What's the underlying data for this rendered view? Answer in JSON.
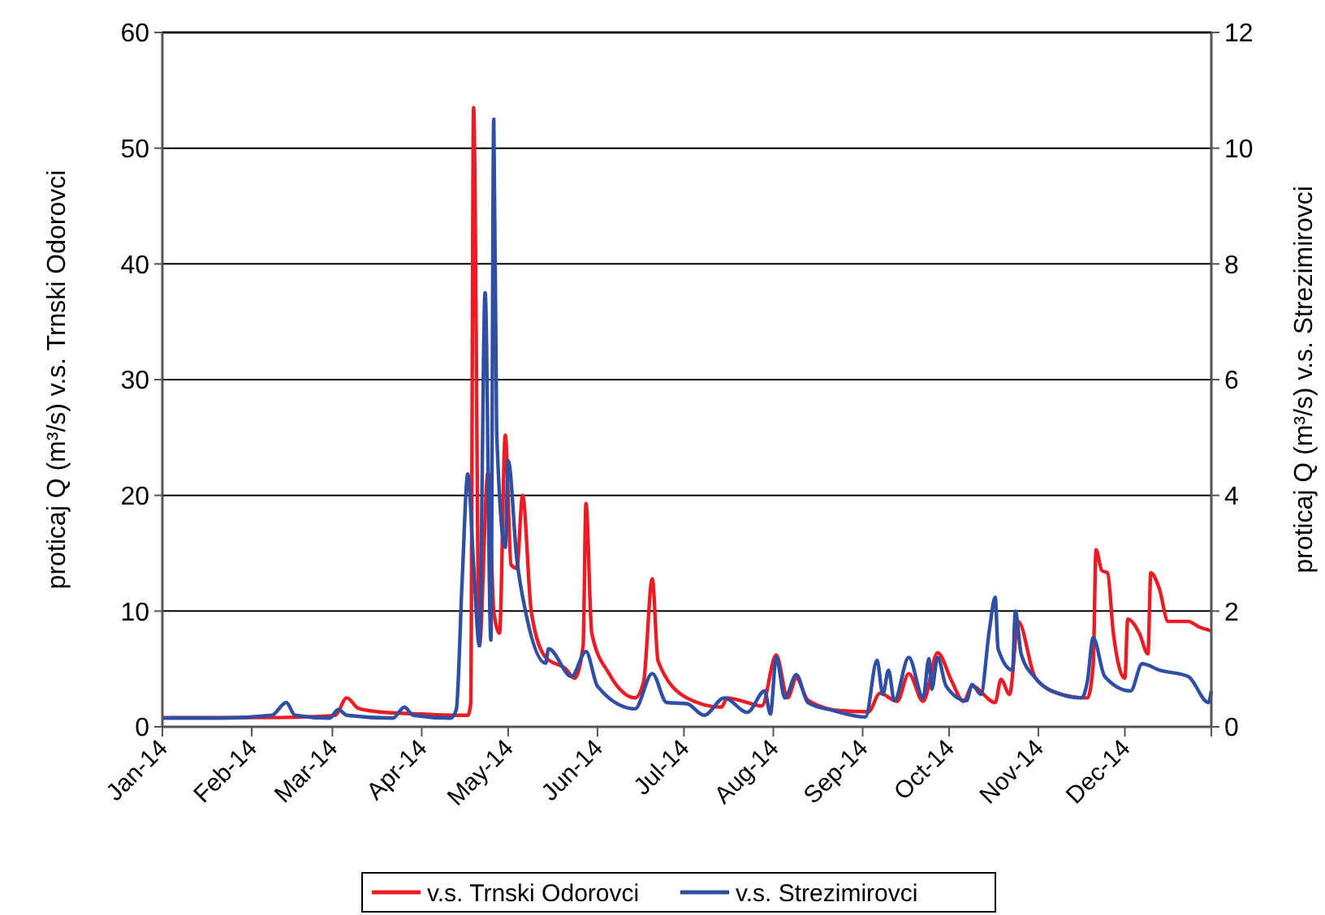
{
  "chart_data": {
    "type": "line",
    "ylabel": "proticaj Q (m³/s) v.s. Trnski Odorovci",
    "y2label": "proticaj Q (m³/s) v.s. Strezimirovci",
    "xlim": [
      "2014-01-01",
      "2014-12-31"
    ],
    "xticks": [
      {
        "value": "2014-01-01",
        "label": "Jan-14"
      },
      {
        "value": "2014-02-01",
        "label": "Feb-14"
      },
      {
        "value": "2014-03-01",
        "label": "Mar-14"
      },
      {
        "value": "2014-04-01",
        "label": "Apr-14"
      },
      {
        "value": "2014-05-01",
        "label": "May-14"
      },
      {
        "value": "2014-06-01",
        "label": "Jun-14"
      },
      {
        "value": "2014-07-01",
        "label": "Jul-14"
      },
      {
        "value": "2014-08-01",
        "label": "Aug-14"
      },
      {
        "value": "2014-09-01",
        "label": "Sep-14"
      },
      {
        "value": "2014-10-01",
        "label": "Oct-14"
      },
      {
        "value": "2014-11-01",
        "label": "Nov-14"
      },
      {
        "value": "2014-12-01",
        "label": "Dec-14"
      }
    ],
    "ylim": [
      0,
      60
    ],
    "yticks": [
      0,
      10,
      20,
      30,
      40,
      50,
      60
    ],
    "y2lim": [
      0,
      12
    ],
    "y2ticks": [
      0,
      2,
      4,
      6,
      8,
      10,
      12
    ],
    "grid": "y",
    "legend": "bottom",
    "marker": "none",
    "line_style": "solid",
    "series": [
      {
        "name": "v.s. Trnski Odorovci",
        "color": "#ed1c24",
        "x": [
          "2014-01-01",
          "2014-01-21",
          "2014-02-10",
          "2014-02-25",
          "2014-03-02",
          "2014-03-06",
          "2014-03-10",
          "2014-03-17",
          "2014-04-01",
          "2014-04-11",
          "2014-04-17",
          "2014-04-18",
          "2014-04-19",
          "2014-04-21",
          "2014-04-24",
          "2014-04-26",
          "2014-04-28",
          "2014-04-30",
          "2014-05-02",
          "2014-05-04",
          "2014-05-06",
          "2014-05-09",
          "2014-05-14",
          "2014-05-21",
          "2014-05-24",
          "2014-05-27",
          "2014-05-28",
          "2014-05-30",
          "2014-06-05",
          "2014-06-14",
          "2014-06-17",
          "2014-06-20",
          "2014-06-22",
          "2014-07-02",
          "2014-07-14",
          "2014-07-16",
          "2014-07-23",
          "2014-07-28",
          "2014-08-02",
          "2014-08-06",
          "2014-08-09",
          "2014-08-13",
          "2014-08-24",
          "2014-09-03",
          "2014-09-07",
          "2014-09-13",
          "2014-09-17",
          "2014-09-22",
          "2014-09-27",
          "2014-10-02",
          "2014-10-06",
          "2014-10-09",
          "2014-10-17",
          "2014-10-19",
          "2014-10-22",
          "2014-10-25",
          "2014-10-31",
          "2014-11-09",
          "2014-11-18",
          "2014-11-20",
          "2014-11-21",
          "2014-11-23",
          "2014-11-25",
          "2014-11-27",
          "2014-12-01",
          "2014-12-02",
          "2014-12-06",
          "2014-12-09",
          "2014-12-10",
          "2014-12-13",
          "2014-12-16",
          "2014-12-23",
          "2014-12-27",
          "2014-12-31"
        ],
        "values": [
          0.8,
          0.8,
          0.8,
          0.9,
          1.0,
          2.5,
          1.6,
          1.3,
          1.1,
          1.0,
          1.0,
          2,
          53.5,
          7,
          22,
          10,
          8.1,
          25.2,
          14,
          13.7,
          20,
          10,
          6,
          5,
          4.2,
          7,
          19.3,
          8.1,
          4.6,
          2.5,
          3.9,
          12.8,
          5.7,
          2.5,
          1.7,
          2.5,
          2.1,
          1.8,
          6.2,
          2.5,
          4.2,
          2.3,
          1.4,
          1.3,
          2.9,
          2.2,
          4.6,
          2.2,
          6.4,
          3.9,
          2.2,
          3.5,
          2.1,
          4.1,
          2.8,
          9.1,
          4.2,
          2.8,
          2.5,
          5.3,
          15.3,
          13.5,
          13.3,
          8.1,
          4.2,
          9.3,
          8.1,
          6.3,
          13.3,
          11.9,
          9.1,
          9.1,
          8.6,
          8.3
        ]
      },
      {
        "name": "v.s. Strezimirovci",
        "color": "#2e4fa3",
        "axis": "y2",
        "x": [
          "2014-01-01",
          "2014-01-21",
          "2014-02-08",
          "2014-02-13",
          "2014-02-16",
          "2014-02-28",
          "2014-03-03",
          "2014-03-06",
          "2014-03-22",
          "2014-03-26",
          "2014-03-29",
          "2014-04-11",
          "2014-04-13",
          "2014-04-15",
          "2014-04-17",
          "2014-04-19",
          "2014-04-21",
          "2014-04-23",
          "2014-04-25",
          "2014-04-26",
          "2014-04-27",
          "2014-04-30",
          "2014-05-01",
          "2014-05-04",
          "2014-05-07",
          "2014-05-14",
          "2014-05-15",
          "2014-05-23",
          "2014-05-28",
          "2014-06-01",
          "2014-06-14",
          "2014-06-20",
          "2014-06-25",
          "2014-07-02",
          "2014-07-08",
          "2014-07-15",
          "2014-07-23",
          "2014-07-29",
          "2014-07-31",
          "2014-08-02",
          "2014-08-05",
          "2014-08-09",
          "2014-08-13",
          "2014-08-22",
          "2014-09-02",
          "2014-09-06",
          "2014-09-08",
          "2014-09-10",
          "2014-09-12",
          "2014-09-17",
          "2014-09-22",
          "2014-09-24",
          "2014-09-25",
          "2014-09-27",
          "2014-09-30",
          "2014-10-07",
          "2014-10-09",
          "2014-10-12",
          "2014-10-15",
          "2014-10-17",
          "2014-10-18",
          "2014-10-23",
          "2014-10-24",
          "2014-10-26",
          "2014-10-31",
          "2014-11-09",
          "2014-11-16",
          "2014-11-18",
          "2014-11-20",
          "2014-11-24",
          "2014-12-03",
          "2014-12-07",
          "2014-12-13",
          "2014-12-23",
          "2014-12-30",
          "2014-12-31"
        ],
        "values": [
          0.15,
          0.15,
          0.2,
          0.42,
          0.2,
          0.15,
          0.3,
          0.2,
          0.15,
          0.34,
          0.2,
          0.15,
          0.3,
          2.5,
          4.37,
          2.8,
          1.4,
          7.5,
          1.5,
          10.5,
          5.1,
          3.1,
          4.6,
          2.9,
          2.0,
          1.1,
          1.35,
          0.87,
          1.3,
          0.7,
          0.31,
          0.92,
          0.42,
          0.4,
          0.2,
          0.5,
          0.25,
          0.62,
          0.22,
          1.2,
          0.5,
          0.9,
          0.42,
          0.28,
          0.17,
          1.15,
          0.56,
          0.98,
          0.45,
          1.2,
          0.5,
          1.18,
          0.65,
          1.2,
          0.7,
          0.45,
          0.73,
          0.56,
          1.68,
          2.24,
          1.35,
          0.98,
          2.0,
          1.26,
          0.84,
          0.56,
          0.5,
          0.79,
          1.54,
          0.87,
          0.62,
          1.09,
          0.98,
          0.87,
          0.42,
          0.62
        ]
      }
    ]
  }
}
